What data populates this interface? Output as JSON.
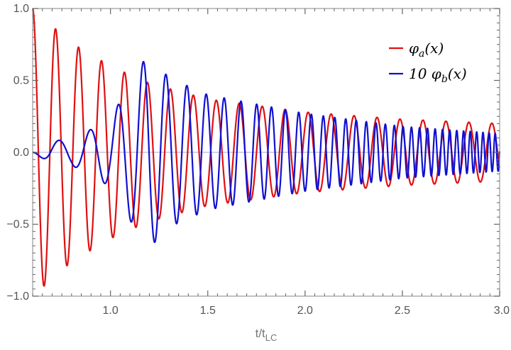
{
  "chart_data": {
    "type": "line",
    "title": "",
    "xlabel": "t/t_LC",
    "xlabel_main": "t/t",
    "xlabel_sub": "LC",
    "ylabel": "",
    "xlim": [
      0.6,
      3.0
    ],
    "ylim": [
      -1.0,
      1.0
    ],
    "grid": false,
    "legend_position": "top-right",
    "x_ticks": [
      1.0,
      1.5,
      2.0,
      2.5,
      3.0
    ],
    "x_tick_labels": [
      "1.0",
      "1.5",
      "2.0",
      "2.5",
      "3.0"
    ],
    "y_ticks": [
      -1.0,
      -0.5,
      0.0,
      0.5,
      1.0
    ],
    "y_tick_labels": [
      "−1.0",
      "−0.5",
      "0.0",
      "0.5",
      "1.0"
    ],
    "series": [
      {
        "name": "φa(x)",
        "legend_text": "φ",
        "legend_sub": "a",
        "legend_tail": "(x)",
        "color": "#e01010",
        "model": "damped-oscillation",
        "peaks_x": [
          0.6,
          0.65,
          0.73,
          0.78,
          0.84,
          0.91,
          0.96,
          1.02,
          1.07
        ],
        "peaks_y": [
          1.0,
          -0.91,
          0.81,
          -0.76,
          0.69,
          -0.64,
          0.6,
          -0.57,
          0.53
        ],
        "envelope_x": [
          0.6,
          0.8,
          1.0,
          1.2,
          1.5,
          2.0,
          2.5,
          3.0
        ],
        "envelope_y": [
          1.0,
          0.76,
          0.6,
          0.48,
          0.37,
          0.28,
          0.23,
          0.2
        ],
        "period": 0.118
      },
      {
        "name": "10 φb(x)",
        "legend_text": "10 φ",
        "legend_sub": "b",
        "legend_tail": "(x)",
        "color": "#1010d0",
        "model": "chirped-oscillation",
        "envelope_x": [
          0.6,
          0.7,
          0.8,
          0.9,
          1.0,
          1.1,
          1.19,
          1.3,
          1.5,
          2.0,
          2.5,
          3.0
        ],
        "envelope_y": [
          0.0,
          0.08,
          0.09,
          0.16,
          0.24,
          0.47,
          0.68,
          0.52,
          0.4,
          0.27,
          0.18,
          0.13
        ],
        "start_period": 0.19,
        "end_period": 0.03
      }
    ]
  }
}
